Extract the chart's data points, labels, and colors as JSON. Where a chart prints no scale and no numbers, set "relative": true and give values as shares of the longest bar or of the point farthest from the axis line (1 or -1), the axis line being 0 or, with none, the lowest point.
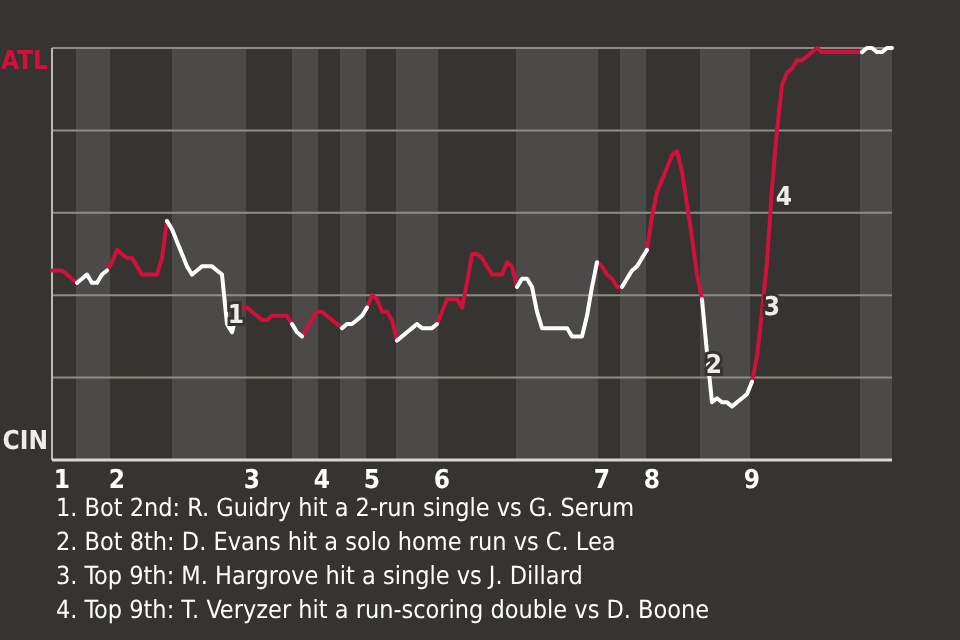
{
  "chart_data": {
    "type": "line",
    "relative": true,
    "categories": [
      null,
      null,
      "1",
      null,
      null,
      null,
      null,
      null,
      null,
      null,
      null,
      null,
      null,
      "2",
      null,
      null,
      null,
      null,
      null,
      null,
      null,
      null,
      null,
      null,
      null,
      null,
      null,
      null,
      null,
      null,
      null,
      null,
      null,
      null,
      null,
      null,
      null,
      null,
      null,
      null,
      "3",
      null,
      null,
      null,
      null,
      null,
      null,
      null,
      null,
      null,
      null,
      null,
      null,
      null,
      "4",
      null,
      null,
      null,
      null,
      null,
      null,
      null,
      null,
      null,
      "5",
      null,
      null,
      null,
      null,
      null,
      null,
      null,
      null,
      null,
      null,
      null,
      null,
      null,
      "6",
      null,
      null,
      null,
      null,
      null,
      null,
      null,
      null,
      null,
      null,
      null,
      null,
      null,
      null,
      null,
      null,
      null,
      null,
      null,
      null,
      null,
      null,
      null,
      null,
      null,
      null,
      null,
      null,
      null,
      null,
      null,
      "7",
      null,
      null,
      null,
      null,
      null,
      null,
      null,
      null,
      null,
      "8",
      null,
      null,
      null,
      null,
      null,
      null,
      null,
      null,
      null,
      null,
      null,
      null,
      null,
      null,
      null,
      null,
      null,
      null,
      null,
      "9",
      null,
      null,
      null,
      null,
      null,
      null,
      null,
      null,
      null,
      null,
      null,
      null,
      null,
      null,
      null,
      null,
      null,
      null,
      null,
      null,
      null,
      null,
      null,
      null,
      null,
      null,
      null,
      null
    ],
    "grid": "y",
    "line_style": "solid",
    "series": [
      {
        "color": "#d2103c",
        "values": [
          0.46,
          0.46,
          0.46,
          0.45,
          0.44,
          0.43,
          null,
          null,
          null,
          null,
          null,
          0.46,
          0.48,
          0.51,
          0.5,
          0.49,
          0.49,
          0.47,
          0.45,
          0.45,
          0.45,
          0.45,
          0.49,
          0.58,
          null,
          null,
          null,
          null,
          null,
          null,
          null,
          null,
          null,
          null,
          null,
          null,
          null,
          0.36,
          0.37,
          0.37,
          0.36,
          0.35,
          0.34,
          0.34,
          0.35,
          0.35,
          0.35,
          0.35,
          0.33,
          null,
          0.3,
          0.32,
          0.34,
          0.36,
          0.36,
          0.35,
          0.34,
          0.33,
          0.32,
          null,
          null,
          null,
          null,
          0.37,
          0.4,
          0.39,
          0.36,
          0.36,
          0.34,
          0.29,
          null,
          null,
          null,
          null,
          null,
          null,
          null,
          0.33,
          0.36,
          0.39,
          0.39,
          0.39,
          0.37,
          0.43,
          0.5,
          0.5,
          0.49,
          0.47,
          0.45,
          0.45,
          0.45,
          0.48,
          0.47,
          0.42,
          null,
          null,
          null,
          null,
          null,
          null,
          null,
          null,
          null,
          null,
          null,
          null,
          null,
          null,
          null,
          0.48,
          0.47,
          0.45,
          0.44,
          0.42,
          0.42,
          null,
          null,
          null,
          null,
          0.51,
          0.59,
          0.65,
          0.68,
          0.71,
          0.74,
          0.75,
          0.7,
          0.62,
          0.54,
          0.45,
          0.39,
          null,
          null,
          null,
          null,
          null,
          null,
          null,
          null,
          null,
          0.19,
          0.25,
          0.36,
          0.48,
          0.66,
          0.8,
          0.91,
          0.94,
          0.95,
          0.97,
          0.97,
          0.98,
          0.99,
          1,
          0.99,
          0.99,
          0.99,
          0.99,
          0.99,
          0.99,
          0.99,
          0.99,
          0.99,
          null,
          null,
          null,
          null,
          null,
          null
        ]
      },
      {
        "color": "#ffffff",
        "values": [
          null,
          null,
          null,
          null,
          null,
          0.43,
          0.44,
          0.45,
          0.43,
          0.43,
          0.45,
          0.46,
          null,
          null,
          null,
          null,
          null,
          null,
          null,
          null,
          null,
          null,
          null,
          0.58,
          0.56,
          0.53,
          0.5,
          0.47,
          0.45,
          0.46,
          0.47,
          0.47,
          0.47,
          0.46,
          0.45,
          0.33,
          0.31,
          0.36,
          null,
          null,
          null,
          null,
          null,
          null,
          null,
          null,
          null,
          null,
          0.33,
          0.31,
          0.3,
          null,
          null,
          null,
          null,
          null,
          null,
          null,
          0.32,
          0.33,
          0.33,
          0.34,
          0.35,
          0.37,
          null,
          null,
          null,
          null,
          null,
          0.29,
          0.3,
          0.31,
          0.32,
          0.33,
          0.32,
          0.32,
          0.32,
          0.33,
          null,
          null,
          null,
          null,
          null,
          null,
          null,
          null,
          null,
          null,
          null,
          null,
          null,
          null,
          null,
          0.42,
          0.44,
          0.44,
          0.42,
          0.36,
          0.32,
          0.32,
          0.32,
          0.32,
          0.32,
          0.32,
          0.3,
          0.3,
          0.3,
          0.35,
          0.42,
          0.48,
          null,
          null,
          null,
          null,
          0.42,
          0.44,
          0.46,
          0.47,
          0.49,
          0.51,
          null,
          null,
          null,
          null,
          null,
          null,
          null,
          null,
          null,
          null,
          0.39,
          0.26,
          0.14,
          0.15,
          0.14,
          0.14,
          0.13,
          0.14,
          0.15,
          0.16,
          0.19,
          null,
          null,
          null,
          null,
          null,
          null,
          null,
          null,
          null,
          null,
          null,
          null,
          null,
          null,
          null,
          null,
          null,
          null,
          null,
          null,
          null,
          0.99,
          1,
          1,
          0.99,
          0.99,
          1,
          1
        ]
      }
    ],
    "annotations": [
      "ATL",
      "CIN",
      "1",
      "2",
      "3",
      "4",
      "1. Bot 2nd: R. Guidry hit a 2-run single vs G. Serum",
      "2. Bot 8th: D. Evans hit a solo home run vs C. Lea",
      "3. Top 9th: M. Hargrove hit a single vs J. Dillard",
      "4. Top 9th: T. Veryzer hit a run-scoring double vs D. Boone"
    ]
  }
}
